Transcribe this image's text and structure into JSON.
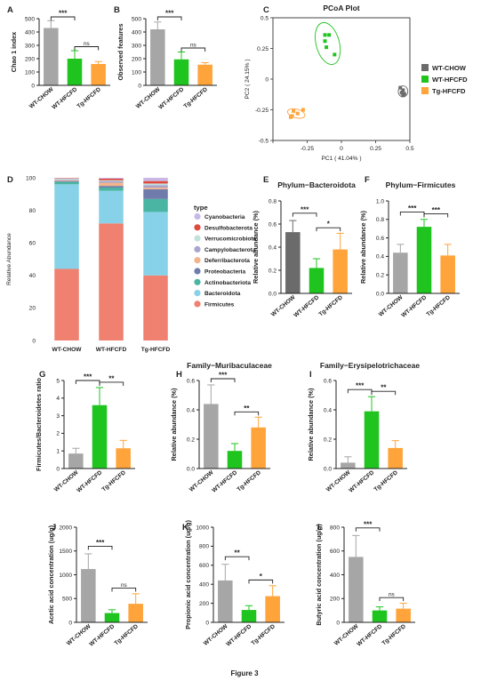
{
  "figure_caption": "Figure 3",
  "colors": {
    "WT-CHOW": "#a6a6a6",
    "WT-HFCFD": "#1fc41f",
    "Tg-HFCFD": "#ffa43a",
    "WT-CHOW_dark": "#6b6b6b",
    "axis": "#222222"
  },
  "chart_data": [
    {
      "id": "A",
      "letter": "A",
      "type": "bar",
      "categories": [
        "WT-CHOW",
        "WT-HFCFD",
        "Tg-HFCFD"
      ],
      "values": [
        430,
        200,
        160
      ],
      "errors": [
        55,
        60,
        18
      ],
      "ylim": [
        0,
        500
      ],
      "yticks": [
        0,
        100,
        200,
        300,
        400,
        500
      ],
      "ylabel": "Chao 1 index",
      "title": "",
      "significance": [
        {
          "from": 0,
          "to": 1,
          "label": "***"
        },
        {
          "from": 1,
          "to": 2,
          "label": "ns"
        }
      ]
    },
    {
      "id": "B",
      "letter": "B",
      "type": "bar",
      "categories": [
        "WT-CHOW",
        "WT-HFCFD",
        "Tg-HFCFD"
      ],
      "values": [
        420,
        195,
        155
      ],
      "errors": [
        55,
        55,
        15
      ],
      "ylim": [
        0,
        500
      ],
      "yticks": [
        0,
        100,
        200,
        300,
        400,
        500
      ],
      "ylabel": "Observed features",
      "title": "",
      "significance": [
        {
          "from": 0,
          "to": 1,
          "label": "***"
        },
        {
          "from": 1,
          "to": 2,
          "label": "ns"
        }
      ]
    },
    {
      "id": "C",
      "letter": "C",
      "type": "scatter",
      "title": "PCoA Plot",
      "xlabel": "PC1 ( 41.04% )",
      "ylabel": "PC2 ( 24.15% )",
      "xlim": [
        -0.5,
        0.5
      ],
      "ylim": [
        -0.5,
        0.5
      ],
      "xticks": [
        -0.5,
        -0.25,
        0,
        0.25,
        0.5
      ],
      "xtick_labels": [
        "",
        "-0.25",
        "0",
        "0.25",
        "0.5"
      ],
      "yticks": [
        -0.5,
        -0.25,
        0,
        0.25,
        0.5
      ],
      "yticks_labels": [
        "-0.5",
        "-0.25",
        "0",
        "0.25",
        "0.5"
      ],
      "legend_position": "right",
      "series": [
        {
          "name": "WT-CHOW",
          "points": [
            [
              0.43,
              -0.07
            ],
            [
              0.45,
              -0.09
            ],
            [
              0.44,
              -0.11
            ],
            [
              0.46,
              -0.12
            ],
            [
              0.45,
              -0.13
            ]
          ],
          "ellipse": {
            "cx": 0.45,
            "cy": -0.1,
            "rx": 0.035,
            "ry": 0.045,
            "angle": 0
          }
        },
        {
          "name": "WT-HFCFD",
          "points": [
            [
              -0.12,
              0.36
            ],
            [
              -0.09,
              0.36
            ],
            [
              -0.11,
              0.26
            ],
            [
              -0.12,
              0.31
            ],
            [
              -0.05,
              0.2
            ]
          ],
          "ellipse": {
            "cx": -0.1,
            "cy": 0.29,
            "rx": 0.085,
            "ry": 0.175,
            "angle": 15
          }
        },
        {
          "name": "Tg-HFCFD",
          "points": [
            [
              -0.35,
              -0.26
            ],
            [
              -0.36,
              -0.3
            ],
            [
              -0.32,
              -0.28
            ],
            [
              -0.28,
              -0.25
            ],
            [
              -0.37,
              -0.31
            ]
          ],
          "ellipse": {
            "cx": -0.33,
            "cy": -0.28,
            "rx": 0.065,
            "ry": 0.035,
            "angle": -15
          }
        }
      ]
    },
    {
      "id": "D",
      "letter": "D",
      "type": "bar",
      "stacked": true,
      "categories": [
        "WT-CHOW",
        "WT-HFCFD",
        "Tg-HFCFD"
      ],
      "ylim": [
        0,
        100
      ],
      "yticks": [
        0,
        20,
        40,
        60,
        80,
        100
      ],
      "ylabel": "Relative Abundance",
      "title": "",
      "legend_title": "type",
      "series": [
        {
          "name": "Firmicutes",
          "color": "#f08070",
          "values": [
            44,
            72,
            40
          ]
        },
        {
          "name": "Bacteroidota",
          "color": "#87d2e8",
          "values": [
            52,
            20,
            39
          ]
        },
        {
          "name": "Actinobacteriota",
          "color": "#4ab5a3",
          "values": [
            1.5,
            2,
            8
          ]
        },
        {
          "name": "Proteobacteria",
          "color": "#6e7bab",
          "values": [
            0.5,
            1,
            6
          ]
        },
        {
          "name": "Deferribacterota",
          "color": "#f2b48a",
          "values": [
            0.5,
            2,
            1
          ]
        },
        {
          "name": "Campylobacterota",
          "color": "#a8a5d0",
          "values": [
            0.5,
            1,
            1.5
          ]
        },
        {
          "name": "Verrucomicrobiota",
          "color": "#bfe3dc",
          "values": [
            0.5,
            0.5,
            1
          ]
        },
        {
          "name": "Desulfobacterota",
          "color": "#e04a3d",
          "values": [
            0.3,
            1,
            1.5
          ]
        },
        {
          "name": "Cyanobacteria",
          "color": "#c7b8e8",
          "values": [
            0.2,
            0.5,
            2
          ]
        }
      ]
    },
    {
      "id": "E",
      "letter": "E",
      "type": "bar",
      "title": "Phylum−Bacteroidota",
      "categories": [
        "WT-CHOW",
        "WT-HFCFD",
        "Tg-HFCFD"
      ],
      "values": [
        0.53,
        0.22,
        0.38
      ],
      "errors": [
        0.1,
        0.08,
        0.14
      ],
      "ylim": [
        0,
        0.8
      ],
      "yticks": [
        0,
        0.2,
        0.4,
        0.6,
        0.8
      ],
      "ytick_labels": [
        "0.0",
        "0.2",
        "0.4",
        "0.6",
        "0.8"
      ],
      "ylabel": "Relative abundance (%)",
      "dark_first": true,
      "significance": [
        {
          "from": 0,
          "to": 1,
          "label": "***"
        },
        {
          "from": 1,
          "to": 2,
          "label": "*"
        }
      ]
    },
    {
      "id": "F",
      "letter": "F",
      "type": "bar",
      "title": "Phylum−Firmicutes",
      "categories": [
        "WT-CHOW",
        "WT-HFCFD",
        "Tg-HFCFD"
      ],
      "values": [
        0.44,
        0.72,
        0.41
      ],
      "errors": [
        0.09,
        0.08,
        0.12
      ],
      "ylim": [
        0,
        1.0
      ],
      "yticks": [
        0,
        0.2,
        0.4,
        0.6,
        0.8,
        1.0
      ],
      "ytick_labels": [
        "0.0",
        "0.2",
        "0.4",
        "0.6",
        "0.8",
        "1.0"
      ],
      "ylabel": "Relative abundance (%)",
      "significance": [
        {
          "from": 0,
          "to": 1,
          "label": "***"
        },
        {
          "from": 1,
          "to": 2,
          "label": "***"
        }
      ]
    },
    {
      "id": "G",
      "letter": "G",
      "type": "bar",
      "title": "",
      "categories": [
        "WT-CHOW",
        "WT-HFCFD",
        "Tg-HFCFD"
      ],
      "values": [
        0.85,
        3.6,
        1.15
      ],
      "errors": [
        0.3,
        1.0,
        0.45
      ],
      "ylim": [
        0,
        5
      ],
      "yticks": [
        0,
        1,
        2,
        3,
        4,
        5
      ],
      "ylabel": "Firmicutes/Bacteroidetes ratio",
      "significance": [
        {
          "from": 0,
          "to": 1,
          "label": "***"
        },
        {
          "from": 1,
          "to": 2,
          "label": "**"
        }
      ]
    },
    {
      "id": "H",
      "letter": "H",
      "type": "bar",
      "title": "Family−Muribaculaceae",
      "categories": [
        "WT-CHOW",
        "WT-HFCFD",
        "Tg-HFCFD"
      ],
      "values": [
        0.44,
        0.12,
        0.28
      ],
      "errors": [
        0.13,
        0.05,
        0.07
      ],
      "ylim": [
        0,
        0.6
      ],
      "yticks": [
        0,
        0.2,
        0.4,
        0.6
      ],
      "ytick_labels": [
        "0.0",
        "0.2",
        "0.4",
        "0.6"
      ],
      "ylabel": "Relative abundance (%)",
      "significance": [
        {
          "from": 0,
          "to": 1,
          "label": "***"
        },
        {
          "from": 1,
          "to": 2,
          "label": "**"
        }
      ]
    },
    {
      "id": "I",
      "letter": "I",
      "type": "bar",
      "title": "Family−Erysipelotrichaceae",
      "categories": [
        "WT-CHOW",
        "WT-HFCFD",
        "Tg-HFCFD"
      ],
      "values": [
        0.04,
        0.39,
        0.14
      ],
      "errors": [
        0.04,
        0.1,
        0.05
      ],
      "ylim": [
        0,
        0.6
      ],
      "yticks": [
        0,
        0.2,
        0.4,
        0.6
      ],
      "ytick_labels": [
        "0.0",
        "0.2",
        "0.4",
        "0.6"
      ],
      "ylabel": "Relative abundance (%)",
      "significance": [
        {
          "from": 0,
          "to": 1,
          "label": "***"
        },
        {
          "from": 1,
          "to": 2,
          "label": "**"
        }
      ]
    },
    {
      "id": "J",
      "letter": "J",
      "type": "bar",
      "title": "",
      "categories": [
        "WT-CHOW",
        "WT-HFCFD",
        "Tg-HFCFD"
      ],
      "values": [
        1120,
        195,
        390
      ],
      "errors": [
        320,
        70,
        210
      ],
      "ylim": [
        0,
        2000
      ],
      "yticks": [
        0,
        500,
        1000,
        1500,
        2000
      ],
      "ylabel": "Acetic acid concentration (ug/g)",
      "significance": [
        {
          "from": 0,
          "to": 1,
          "label": "***"
        },
        {
          "from": 1,
          "to": 2,
          "label": "ns"
        }
      ]
    },
    {
      "id": "K",
      "letter": "K",
      "type": "bar",
      "title": "",
      "categories": [
        "WT-CHOW",
        "WT-HFCFD",
        "Tg-HFCFD"
      ],
      "values": [
        440,
        130,
        275
      ],
      "errors": [
        170,
        45,
        110
      ],
      "ylim": [
        0,
        1000
      ],
      "yticks": [
        0,
        200,
        400,
        600,
        800,
        1000
      ],
      "ylabel": "Propionic acid concentration (ug/g)",
      "significance": [
        {
          "from": 0,
          "to": 1,
          "label": "**"
        },
        {
          "from": 1,
          "to": 2,
          "label": "*"
        }
      ]
    },
    {
      "id": "L",
      "letter": "L",
      "type": "bar",
      "title": "",
      "categories": [
        "WT-CHOW",
        "WT-HFCFD",
        "Tg-HFCFD"
      ],
      "values": [
        550,
        100,
        115
      ],
      "errors": [
        180,
        30,
        45
      ],
      "ylim": [
        0,
        800
      ],
      "yticks": [
        0,
        200,
        400,
        600,
        800
      ],
      "ylabel": "Butyric acid concentration (ug/g)",
      "significance": [
        {
          "from": 0,
          "to": 1,
          "label": "***"
        },
        {
          "from": 1,
          "to": 2,
          "label": "ns"
        }
      ]
    }
  ]
}
